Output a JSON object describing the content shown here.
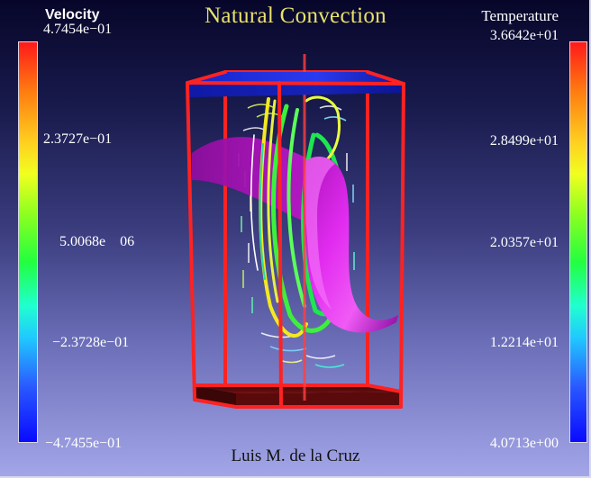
{
  "title": "Natural Convection",
  "velocity_legend": {
    "label": "Velocity",
    "ticks": [
      "4.7454e−01",
      "2.3727e−01",
      "5.0068e 06",
      "−2.3728e−01",
      "−4.7455e−01"
    ]
  },
  "temperature_legend": {
    "label": "Temperature",
    "ticks": [
      "3.6642e+01",
      "2.8499e+01",
      "2.0357e+01",
      "1.2214e+01",
      "4.0713e+00"
    ]
  },
  "credit": "Luis M. de la Cruz",
  "colors": {
    "title": "#e8e16a",
    "box_edges": "#ff1f1f",
    "top_lid": "#1a2bd6",
    "bottom_floor": "#6a0a0a",
    "isosurface": "#d41ad8"
  }
}
